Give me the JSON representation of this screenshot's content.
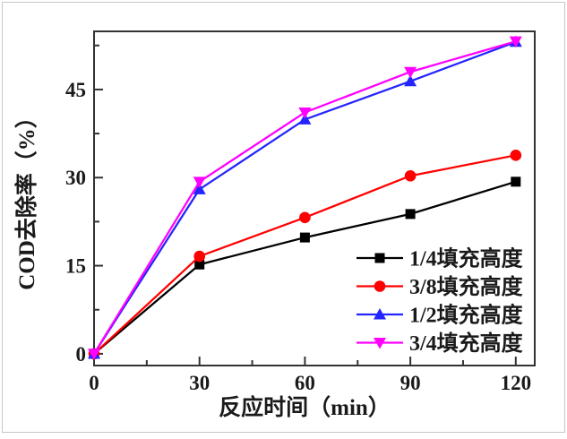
{
  "figure": {
    "background": "#ffffff",
    "frame_color": "#c6c6c6"
  },
  "style": {
    "axis_color": "#333333",
    "tick_color": "#333333",
    "text_color": "#1a1a1a",
    "line_width": 2.25
  },
  "chart_data": {
    "type": "line",
    "title": "",
    "xlabel": "反应时间（min）",
    "ylabel": "COD去除率（%）",
    "x": [
      0,
      30,
      60,
      90,
      120
    ],
    "series": [
      {
        "name": "1/4填充高度",
        "color": "#000000",
        "marker": "square",
        "values": [
          0,
          15.2,
          19.8,
          23.8,
          29.3
        ]
      },
      {
        "name": "3/8填充高度",
        "color": "#ff0000",
        "marker": "circle",
        "values": [
          0,
          16.6,
          23.2,
          30.3,
          33.8
        ]
      },
      {
        "name": "1/2填充高度",
        "color": "#2424ff",
        "marker": "triangle-up",
        "values": [
          0,
          28.0,
          39.9,
          46.4,
          53.1
        ]
      },
      {
        "name": "3/4填充高度",
        "color": "#ff00ff",
        "marker": "triangle-down",
        "values": [
          0,
          29.3,
          41.1,
          48.0,
          53.2
        ]
      }
    ],
    "xlim": [
      0,
      125.4
    ],
    "ylim": [
      -2,
      54.9
    ],
    "x_major_ticks": [
      0,
      30,
      60,
      90,
      120
    ],
    "x_minor_ticks": [
      15,
      45,
      75,
      105
    ],
    "y_major_ticks": [
      0,
      15,
      30,
      45
    ],
    "y_minor_ticks": [
      7.5,
      22.5,
      37.5,
      52.5
    ],
    "grid": false,
    "legend_position": "lower-right",
    "legend": [
      "1/4填充高度",
      "3/8填充高度",
      "1/2填充高度",
      "3/4填充高度"
    ]
  }
}
